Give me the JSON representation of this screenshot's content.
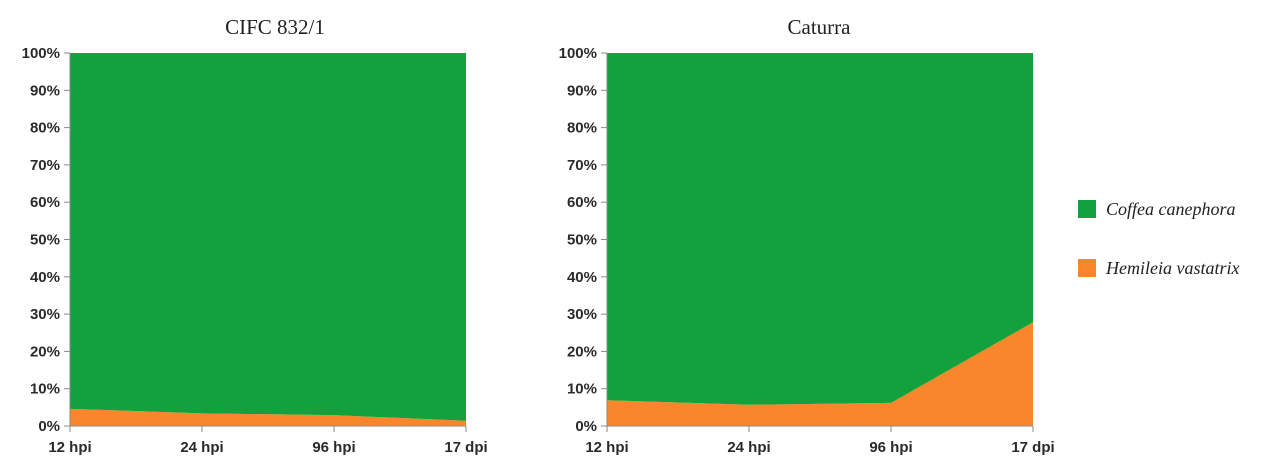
{
  "chart_data": [
    {
      "type": "area",
      "stacked": "percent",
      "title": "CIFC 832/1",
      "categories": [
        "12 hpi",
        "24 hpi",
        "96 hpi",
        "17 dpi"
      ],
      "ylim": [
        0,
        100
      ],
      "yticks": [
        "0%",
        "10%",
        "20%",
        "30%",
        "40%",
        "50%",
        "60%",
        "70%",
        "80%",
        "90%",
        "100%"
      ],
      "series": [
        {
          "name": "Hemileia vastatrix",
          "values": [
            4.6,
            3.4,
            2.9,
            1.4
          ]
        },
        {
          "name": "Coffea canephora",
          "values": [
            95.4,
            96.6,
            97.1,
            98.6
          ]
        }
      ]
    },
    {
      "type": "area",
      "stacked": "percent",
      "title": "Caturra",
      "categories": [
        "12 hpi",
        "24 hpi",
        "96 hpi",
        "17 dpi"
      ],
      "ylim": [
        0,
        100
      ],
      "yticks": [
        "0%",
        "10%",
        "20%",
        "30%",
        "40%",
        "50%",
        "60%",
        "70%",
        "80%",
        "90%",
        "100%"
      ],
      "series": [
        {
          "name": "Hemileia vastatrix",
          "values": [
            6.9,
            5.7,
            6.2,
            27.8
          ]
        },
        {
          "name": "Coffea canephora",
          "values": [
            93.1,
            94.3,
            93.8,
            72.2
          ]
        }
      ]
    }
  ],
  "legend": {
    "position": "right",
    "items": [
      {
        "label": "Coffea canephora",
        "color": "#13a13e"
      },
      {
        "label": "Hemileia vastatrix",
        "color": "#f8862a"
      }
    ]
  },
  "colors": {
    "Coffea canephora": "#13a13e",
    "Hemileia vastatrix": "#f8862a",
    "grid": "#b9b9b9",
    "axis": "#8a8a8a"
  }
}
